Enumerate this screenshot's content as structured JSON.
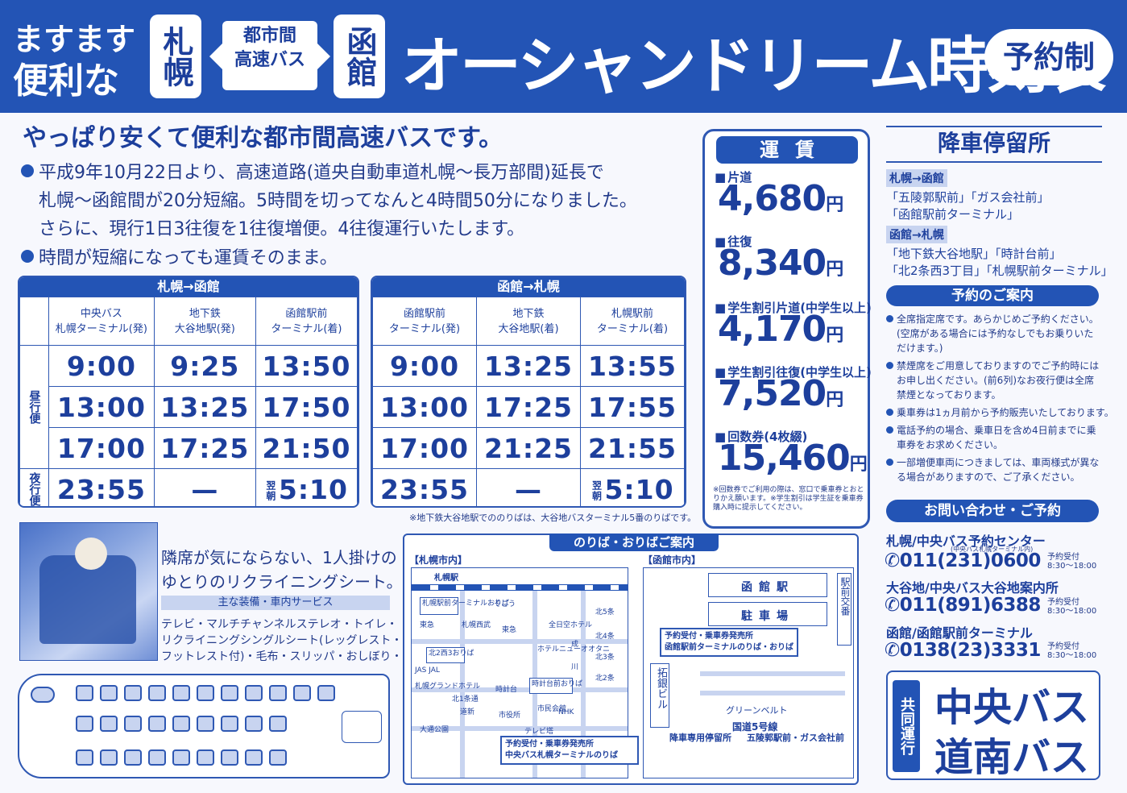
{
  "header": {
    "line1": "ますます",
    "line2": "便利な",
    "from_city": "札幌",
    "route_type_line1": "都市間",
    "route_type_line2": "高速バス",
    "to_city": "函館",
    "title": "オーシャンドリーム時刻表",
    "badge": "予約制"
  },
  "intro": {
    "heading": "やっぱり安くて便利な都市間高速バスです。",
    "lines": [
      "平成9年10月22日より、高速道路(道央自動車道札幌〜長万部間)延長で",
      "札幌〜函館間が20分短縮。5時間を切ってなんと4時間50分になりました。",
      "さらに、現行1日3往復を1往復増便。4往復運行いたします。",
      "時間が短縮になっても運賃そのまま。"
    ]
  },
  "timetables": [
    {
      "title": "札幌→函館",
      "headers": [
        "中央バス\n札幌ターミナル(発)",
        "地下鉄\n大谷地駅(発)",
        "函館駅前\nターミナル(着)"
      ],
      "day_label": "昼行便",
      "night_label": "夜行便",
      "rows": [
        [
          "9:00",
          "9:25",
          "13:50"
        ],
        [
          "13:00",
          "13:25",
          "17:50"
        ],
        [
          "17:00",
          "17:25",
          "21:50"
        ],
        [
          "23:55",
          "—",
          "5:10"
        ]
      ],
      "next_morning": "翌朝"
    },
    {
      "title": "函館→札幌",
      "headers": [
        "函館駅前\nターミナル(発)",
        "地下鉄\n大谷地駅(着)",
        "札幌駅前\nターミナル(着)"
      ],
      "rows": [
        [
          "9:00",
          "13:25",
          "13:55"
        ],
        [
          "13:00",
          "17:25",
          "17:55"
        ],
        [
          "17:00",
          "21:25",
          "21:55"
        ],
        [
          "23:55",
          "—",
          "5:10"
        ]
      ],
      "next_morning": "翌朝"
    }
  ],
  "timetable_note": "※地下鉄大谷地駅でののりばは、大谷地バスターミナル5番のりばです。",
  "fares": {
    "title": "運賃",
    "items": [
      {
        "label": "片道",
        "price": "4,680",
        "unit": "円"
      },
      {
        "label": "往復",
        "price": "8,340",
        "unit": "円"
      },
      {
        "label": "学生割引片道(中学生以上)",
        "price": "4,170",
        "unit": "円"
      },
      {
        "label": "学生割引往復(中学生以上)",
        "price": "7,520",
        "unit": "円"
      },
      {
        "label": "回数券(4枚綴)",
        "price": "15,460",
        "unit": "円"
      }
    ],
    "note": "※回数券でご利用の際は、窓口で乗車券とおとりかえ願います。※学生割引は学生証を乗車券購入時に提示してください。"
  },
  "stops": {
    "title": "降車停留所",
    "routes": [
      {
        "tag": "札幌→函館",
        "lines": [
          "「五陵郭駅前」「ガス会社前」",
          "「函館駅前ターミナル」"
        ]
      },
      {
        "tag": "函館→札幌",
        "lines": [
          "「地下鉄大谷地駅」「時計台前」",
          "「北2条西3丁目」「札幌駅前ターミナル」"
        ]
      }
    ]
  },
  "reservation": {
    "title": "予約のご案内",
    "items": [
      [
        "全席指定席です。あらかじめご予約ください。",
        "(空席がある場合には予約なしでもお乗りいた",
        "だけます。)"
      ],
      [
        "禁煙席をご用意しておりますのでご予約時には",
        "お申し出ください。(前6列)なお夜行便は全席",
        "禁煙となっております。"
      ],
      [
        "乗車券は1ヵ月前から予約販売いたしております。"
      ],
      [
        "電話予約の場合、乗車日を含め4日前までに乗",
        "車券をお求めください。"
      ],
      [
        "一部増便車両につきましては、車両様式が異な",
        "る場合がありますので、ご了承ください。"
      ]
    ]
  },
  "contact": {
    "title": "お問い合わせ・ご予約",
    "items": [
      {
        "name": "札幌/中央バス予約センター",
        "sub": "(中央バス札幌ターミナル内)",
        "phone": "011(231)0600",
        "hours": "予約受付\n8:30〜18:00"
      },
      {
        "name": "大谷地/中央バス大谷地案内所",
        "sub": "",
        "phone": "011(891)6388",
        "hours": "予約受付\n8:30〜18:00"
      },
      {
        "name": "函館/函館駅前ターミナル",
        "sub": "",
        "phone": "0138(23)3331",
        "hours": "予約受付\n8:30〜18:00"
      }
    ]
  },
  "joint": {
    "label": "共同運行",
    "companies": [
      "中央バス",
      "道南バス"
    ]
  },
  "seat": {
    "line1": "隣席が気にならない、1人掛けの",
    "line2": "ゆとりのリクライニングシート。",
    "amenities_title": "主な装備・車内サービス",
    "amenities": [
      "テレビ・マルチチャンネルステレオ・トイレ・",
      "リクライニングシングルシート(レッグレスト・",
      "フットレスト付)・毛布・スリッパ・おしぼり・お茶"
    ]
  },
  "maps": {
    "title": "のりば・おりばご案内",
    "sapporo": {
      "label": "【札幌市内】",
      "station": "札幌駅",
      "places": [
        "札幌駅前ターミナルおりば",
        "そごう",
        "東急",
        "札幌西武",
        "東急",
        "全日空ホテル",
        "北5条",
        "北4条",
        "北3条",
        "北2条",
        "ホテルニューオオタニ",
        "成",
        "川",
        "北2西3おりば",
        "JAS JAL",
        "札幌グランドホテル",
        "北1条通",
        "時計台",
        "時計台前おりば",
        "道新",
        "市役所",
        "市民会館",
        "NHK",
        "テレビ塔",
        "大通公園"
      ],
      "terminal": "予約受付・乗車券発売所",
      "terminal2": "中央バス札幌ターミナルのりば"
    },
    "hakodate": {
      "label": "【函館市内】",
      "station": "函館駅",
      "parking": "駐車場",
      "police": "駅前交番",
      "bank": "拓銀ビル",
      "office1": "予約受付・乗車券発売所",
      "office2": "函館駅前ターミナルのりば・おりば",
      "green": "グリーンベルト",
      "route": "国道5号線",
      "stop1": "降車専用停留所",
      "stop2": "五陵郭駅前・ガス会社前"
    }
  },
  "colors": {
    "brand": "#2354b5",
    "ink": "#1d3f9c",
    "light": "#c8d4f0"
  }
}
